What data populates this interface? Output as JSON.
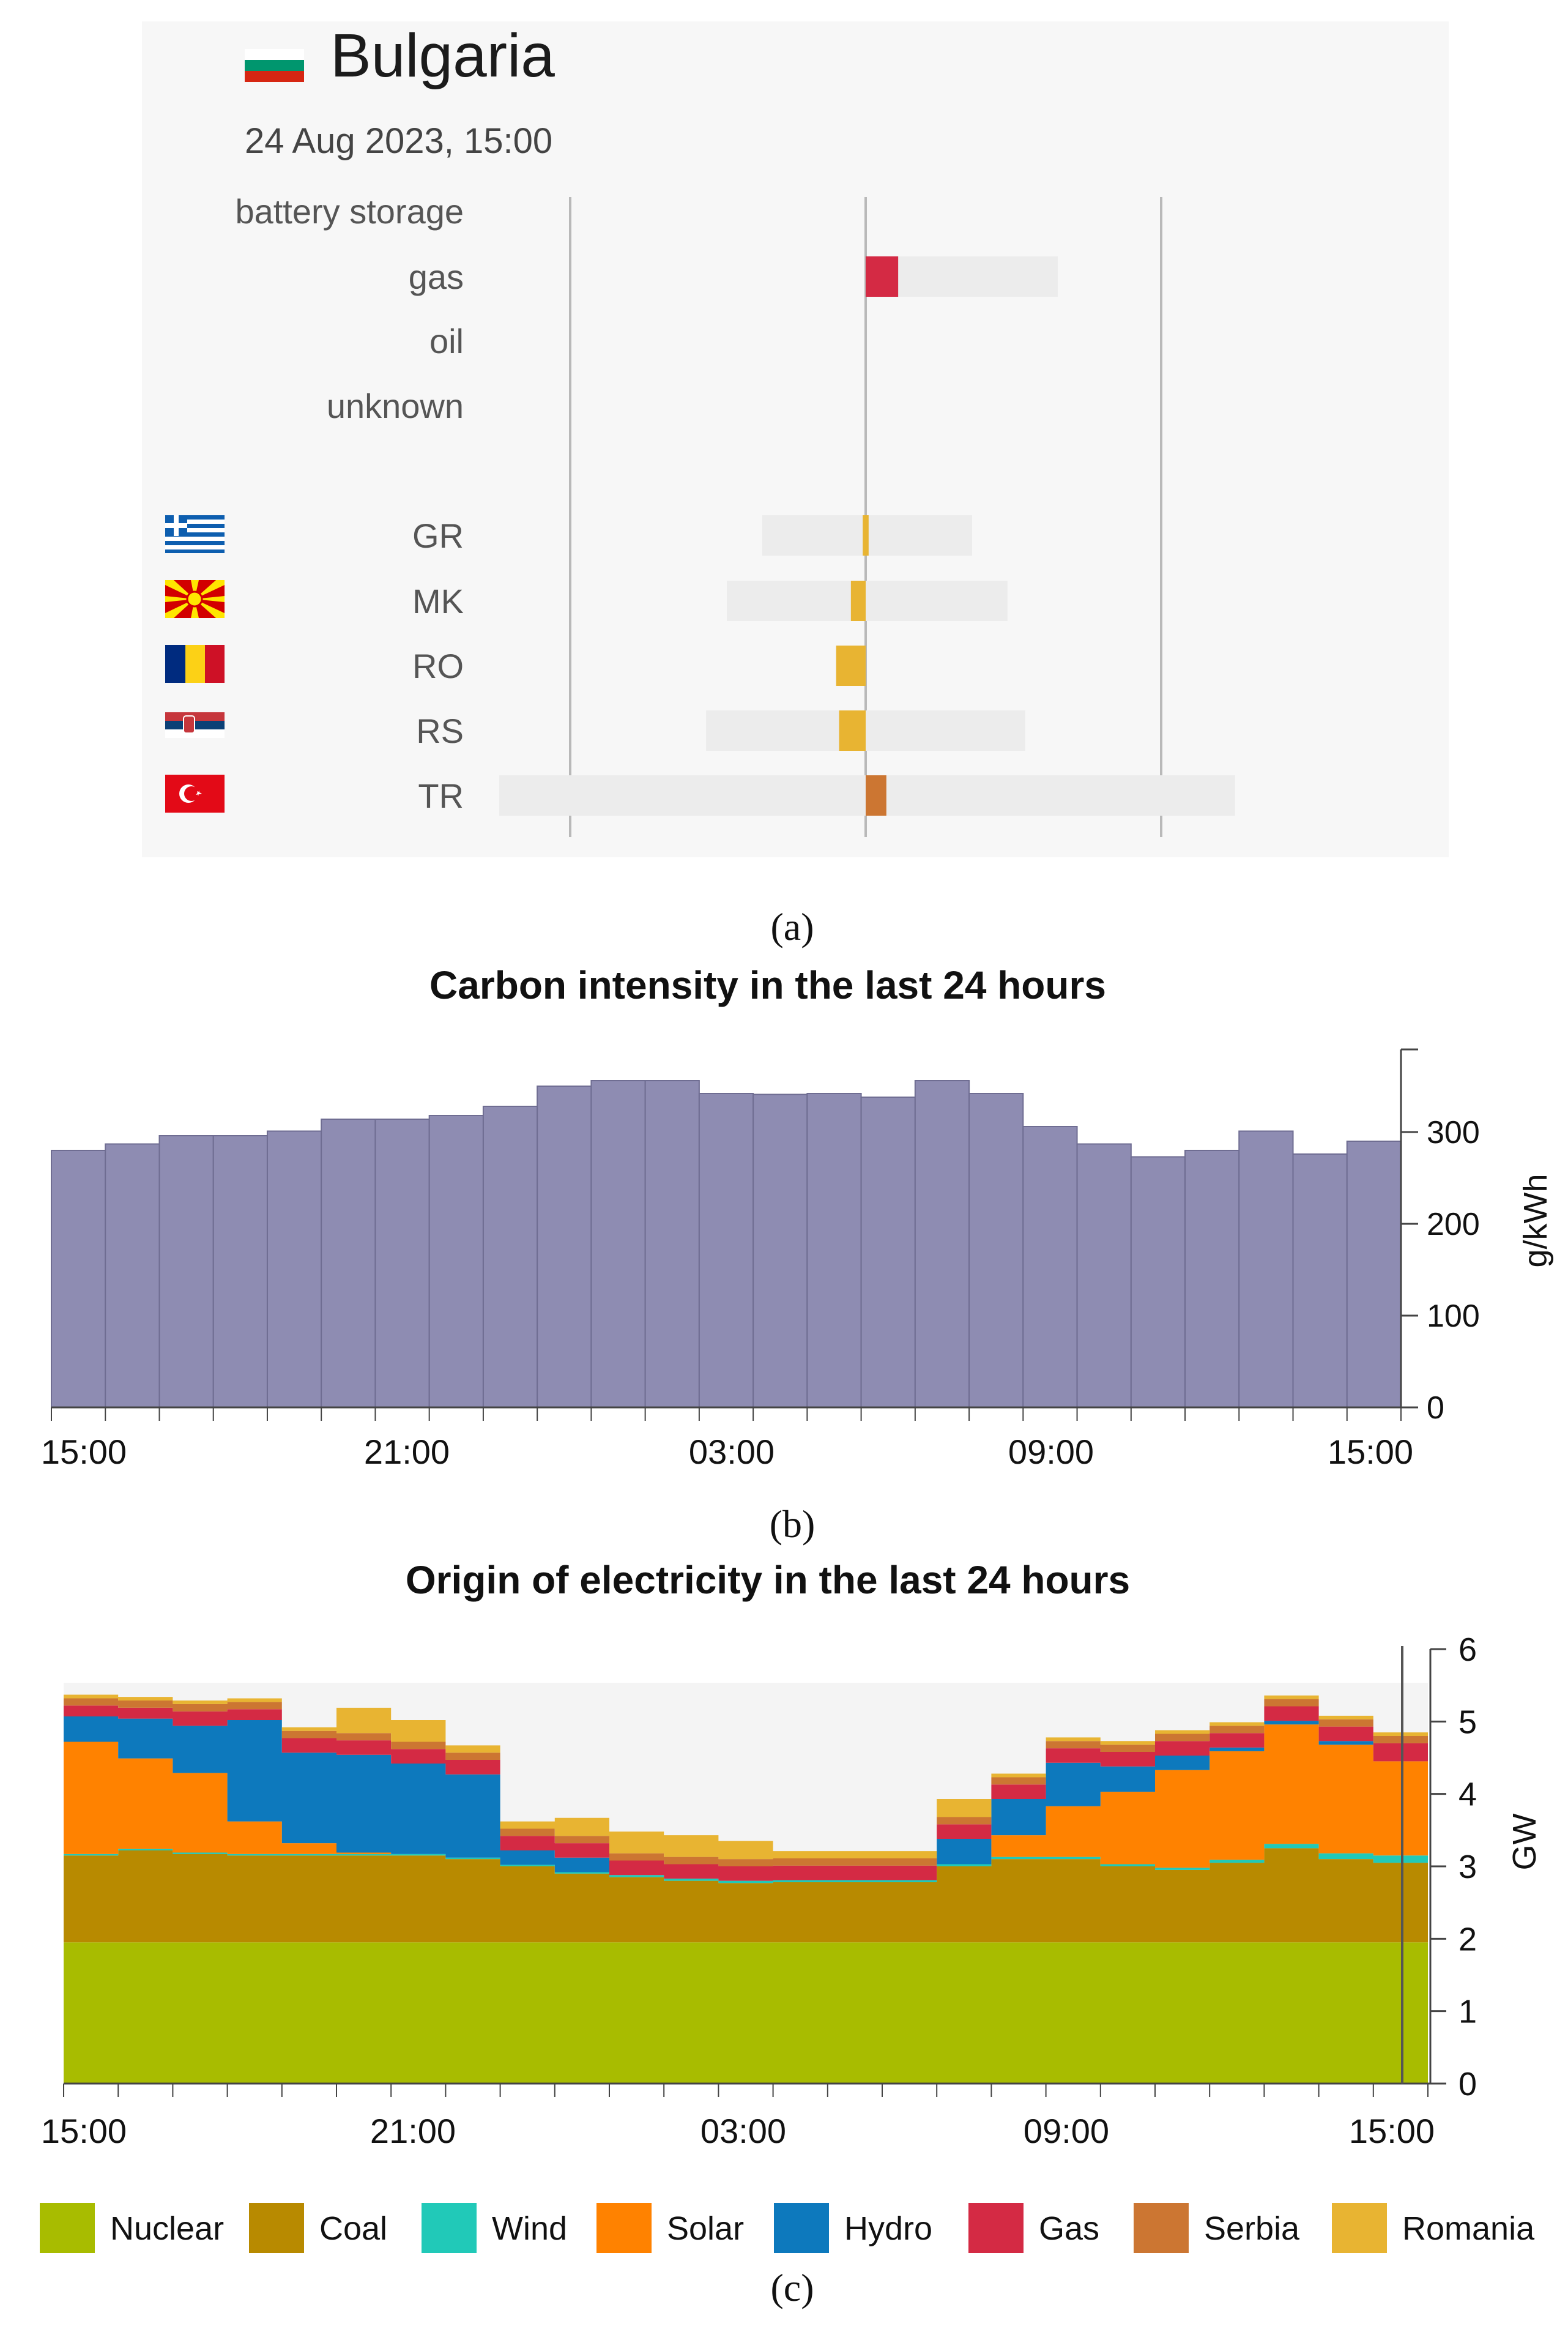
{
  "colors": {
    "nuclear": "#a8bc00",
    "coal": "#b88a00",
    "wind": "#21c9b8",
    "solar": "#ff8200",
    "hydro": "#0d79bd",
    "gas": "#d42a44",
    "serbia": "#cc7632",
    "romania": "#e8b432",
    "carbon_bar": "#8e8cb2",
    "panel_bg": "#f7f7f7",
    "track": "#ececec"
  },
  "panel_a": {
    "country": "Bulgaria",
    "datetime": "24 Aug 2023, 15:00",
    "caption": "(a)",
    "chart_data": {
      "type": "bar",
      "title": "Bulgaria",
      "subtitle": "24 Aug 2023, 15:00",
      "note": "values read as relative widths: center axis = 0, outer gridlines = -1 / +1",
      "rows": [
        {
          "label": "battery storage",
          "flag": "",
          "track": null,
          "value": null,
          "color_key": ""
        },
        {
          "label": "gas",
          "flag": "",
          "track": [
            0,
            0.65
          ],
          "value": [
            0,
            0.11
          ],
          "color_key": "gas"
        },
        {
          "label": "oil",
          "flag": "",
          "track": null,
          "value": null,
          "color_key": ""
        },
        {
          "label": "unknown",
          "flag": "",
          "track": null,
          "value": null,
          "color_key": ""
        },
        {
          "label": "GR",
          "flag": "flag-greece-icon",
          "track": [
            -0.35,
            0.36
          ],
          "value": [
            -0.01,
            0.01
          ],
          "color_key": "romania"
        },
        {
          "label": "MK",
          "flag": "flag-north-macedonia-icon",
          "track": [
            -0.47,
            0.48
          ],
          "value": [
            -0.05,
            0.0
          ],
          "color_key": "romania"
        },
        {
          "label": "RO",
          "flag": "flag-romania-icon",
          "track": null,
          "value": [
            -0.1,
            0.0
          ],
          "color_key": "romania"
        },
        {
          "label": "RS",
          "flag": "flag-serbia-icon",
          "track": [
            -0.54,
            0.54
          ],
          "value": [
            -0.09,
            0.0
          ],
          "color_key": "romania"
        },
        {
          "label": "TR",
          "flag": "flag-turkey-icon",
          "track": [
            -1.24,
            1.25
          ],
          "value": [
            0.0,
            0.07
          ],
          "color_key": "serbia"
        }
      ]
    }
  },
  "panel_b": {
    "caption": "(b)",
    "chart_data": {
      "type": "bar",
      "title": "Carbon intensity in the last 24 hours",
      "xlabel": "",
      "ylabel": "g/kWh",
      "ylim": [
        0,
        390
      ],
      "yticks": [
        0,
        100,
        200,
        300
      ],
      "ytick_labels": [
        "0",
        "100",
        "200",
        "300"
      ],
      "xtick_labels": [
        "15:00",
        "21:00",
        "03:00",
        "09:00",
        "15:00"
      ],
      "values": [
        280,
        287,
        296,
        296,
        301,
        314,
        314,
        318,
        328,
        350,
        356,
        356,
        342,
        341,
        342,
        338,
        356,
        342,
        306,
        287,
        273,
        280,
        301,
        276,
        290
      ]
    }
  },
  "panel_c": {
    "caption": "(c)",
    "chart_data": {
      "type": "area",
      "title": "Origin of electricity in the last 24 hours",
      "xlabel": "",
      "ylabel": "GW",
      "ylim": [
        0,
        6
      ],
      "yticks": [
        0,
        1,
        2,
        3,
        4,
        5,
        6
      ],
      "ytick_labels": [
        "0",
        "1",
        "2",
        "3",
        "4",
        "5",
        "6"
      ],
      "xtick_labels": [
        "15:00",
        "21:00",
        "03:00",
        "09:00",
        "15:00"
      ],
      "series": [
        {
          "name": "Nuclear",
          "color_key": "nuclear",
          "values": [
            1.95,
            1.95,
            1.95,
            1.95,
            1.95,
            1.95,
            1.95,
            1.95,
            1.95,
            1.95,
            1.95,
            1.95,
            1.95,
            1.95,
            1.95,
            1.95,
            1.95,
            1.95,
            1.95,
            1.95,
            1.95,
            1.95,
            1.95,
            1.95,
            1.95
          ]
        },
        {
          "name": "Coal",
          "color_key": "coal",
          "values": [
            1.2,
            1.27,
            1.22,
            1.2,
            1.2,
            1.2,
            1.2,
            1.15,
            1.05,
            0.95,
            0.9,
            0.85,
            0.82,
            0.83,
            0.83,
            0.83,
            1.05,
            1.15,
            1.15,
            1.05,
            1.0,
            1.1,
            1.3,
            1.15,
            1.1
          ]
        },
        {
          "name": "Wind",
          "color_key": "wind",
          "values": [
            0.02,
            0.02,
            0.02,
            0.02,
            0.02,
            0.02,
            0.02,
            0.02,
            0.02,
            0.02,
            0.03,
            0.03,
            0.03,
            0.03,
            0.03,
            0.03,
            0.03,
            0.03,
            0.03,
            0.03,
            0.03,
            0.04,
            0.06,
            0.08,
            0.1
          ]
        },
        {
          "name": "Solar",
          "color_key": "solar",
          "values": [
            1.55,
            1.25,
            1.1,
            0.45,
            0.15,
            0.02,
            0.0,
            0.0,
            0.0,
            0.0,
            0.0,
            0.0,
            0.0,
            0.0,
            0.0,
            0.0,
            0.0,
            0.3,
            0.7,
            1.0,
            1.35,
            1.5,
            1.65,
            1.5,
            1.3
          ]
        },
        {
          "name": "Hydro",
          "color_key": "hydro",
          "values": [
            0.35,
            0.55,
            0.65,
            1.4,
            1.25,
            1.35,
            1.25,
            1.15,
            0.2,
            0.2,
            0.0,
            0.0,
            0.0,
            0.0,
            0.0,
            0.0,
            0.35,
            0.5,
            0.6,
            0.35,
            0.2,
            0.05,
            0.05,
            0.05,
            0.0
          ]
        },
        {
          "name": "Gas",
          "color_key": "gas",
          "values": [
            0.15,
            0.15,
            0.2,
            0.15,
            0.2,
            0.2,
            0.2,
            0.2,
            0.2,
            0.2,
            0.2,
            0.2,
            0.2,
            0.2,
            0.2,
            0.2,
            0.2,
            0.2,
            0.2,
            0.2,
            0.2,
            0.2,
            0.2,
            0.2,
            0.25
          ]
        },
        {
          "name": "Serbia",
          "color_key": "serbia",
          "values": [
            0.1,
            0.1,
            0.1,
            0.1,
            0.1,
            0.1,
            0.1,
            0.1,
            0.1,
            0.1,
            0.1,
            0.1,
            0.1,
            0.1,
            0.1,
            0.1,
            0.1,
            0.1,
            0.1,
            0.1,
            0.1,
            0.1,
            0.1,
            0.1,
            0.1
          ]
        },
        {
          "name": "Romania",
          "color_key": "romania",
          "values": [
            0.05,
            0.05,
            0.05,
            0.05,
            0.05,
            0.35,
            0.3,
            0.1,
            0.1,
            0.25,
            0.3,
            0.3,
            0.25,
            0.1,
            0.1,
            0.1,
            0.25,
            0.05,
            0.05,
            0.05,
            0.05,
            0.05,
            0.05,
            0.05,
            0.05
          ]
        }
      ]
    },
    "legend": [
      {
        "label": "Nuclear",
        "color_key": "nuclear"
      },
      {
        "label": "Coal",
        "color_key": "coal"
      },
      {
        "label": "Wind",
        "color_key": "wind"
      },
      {
        "label": "Solar",
        "color_key": "solar"
      },
      {
        "label": "Hydro",
        "color_key": "hydro"
      },
      {
        "label": "Gas",
        "color_key": "gas"
      },
      {
        "label": "Serbia",
        "color_key": "serbia"
      },
      {
        "label": "Romania",
        "color_key": "romania"
      }
    ]
  }
}
